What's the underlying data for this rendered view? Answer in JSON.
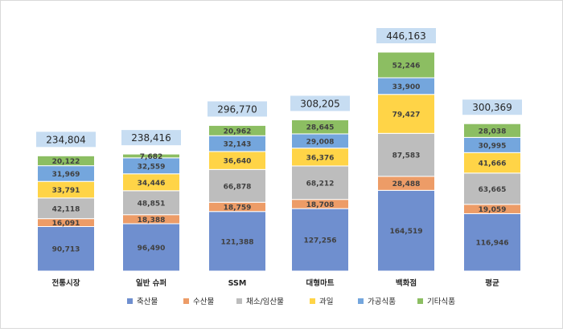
{
  "chart_data": {
    "type": "bar",
    "stacked": true,
    "categories": [
      "전통시장",
      "일반 슈퍼",
      "SSM",
      "대형마트",
      "백화점",
      "평균"
    ],
    "totals": [
      234804,
      238416,
      296770,
      308205,
      446163,
      300369
    ],
    "series": [
      {
        "name": "축산물",
        "color": "#6F8FCF",
        "values": [
          90713,
          96490,
          121388,
          127256,
          164519,
          116946
        ]
      },
      {
        "name": "수산물",
        "color": "#ED9C67",
        "values": [
          16091,
          18388,
          18759,
          18708,
          28488,
          19059
        ]
      },
      {
        "name": "채소/임산물",
        "color": "#BDBDBD",
        "values": [
          42118,
          48851,
          66878,
          68212,
          87583,
          63665
        ]
      },
      {
        "name": "과일",
        "color": "#FFD447",
        "values": [
          33791,
          34446,
          36640,
          36376,
          79427,
          41666
        ]
      },
      {
        "name": "가공식품",
        "color": "#74A6DD",
        "values": [
          31969,
          32559,
          32143,
          29008,
          33900,
          30995
        ]
      },
      {
        "name": "기타식품",
        "color": "#8CBE62",
        "values": [
          20122,
          7682,
          20962,
          28645,
          52246,
          28038
        ]
      }
    ],
    "legend_position": "bottom",
    "grid": false
  }
}
